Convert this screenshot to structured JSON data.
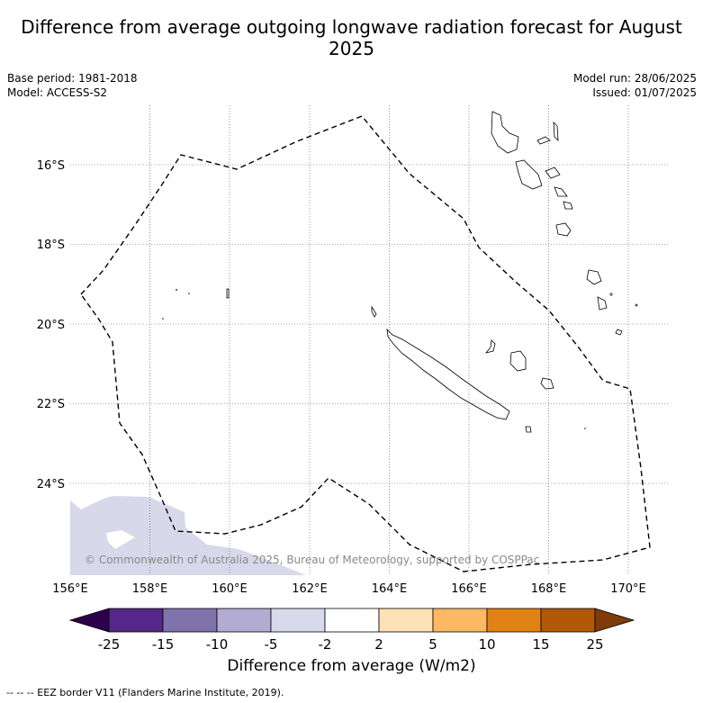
{
  "title": "Difference from average outgoing longwave radiation forecast for August 2025",
  "meta": {
    "base_period": "Base period: 1981-2018",
    "model": "Model: ACCESS-S2",
    "model_run": "Model run: 28/06/2025",
    "issued": "Issued: 01/07/2025"
  },
  "map": {
    "lon_labels": [
      "156°E",
      "158°E",
      "160°E",
      "162°E",
      "164°E",
      "166°E",
      "168°E",
      "170°E"
    ],
    "lat_labels": [
      "16°S",
      "18°S",
      "20°S",
      "22°S",
      "24°S"
    ],
    "copyright": "© Commonwealth of Australia 2025, Bureau of Meteorology, supported by COSPPac",
    "anomaly_fill_color": "#d8d8ea",
    "eez_style": "dashed black"
  },
  "colorbar": {
    "title": "Difference from average (W/m2)",
    "ticks": [
      "-25",
      "-15",
      "-10",
      "-5",
      "-2",
      "2",
      "5",
      "10",
      "15",
      "25"
    ],
    "colors": [
      "#2d004b",
      "#542788",
      "#8073ac",
      "#b2abd2",
      "#d8daeb",
      "#ffffff",
      "#fee0b6",
      "#fdb863",
      "#e08214",
      "#b35806",
      "#7f3b08"
    ]
  },
  "footer": "--  --  -- EEZ border V11 (Flanders Marine Institute, 2019)."
}
